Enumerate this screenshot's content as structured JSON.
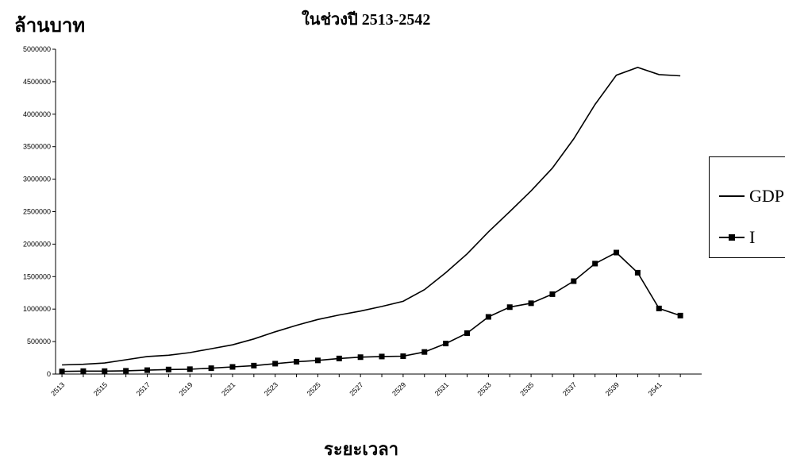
{
  "chart_data": {
    "type": "line",
    "title": "ในช่วงปี 2513-2542",
    "ylabel": "ล้านบาท",
    "xlabel": "ระยะเวลา",
    "ylim": [
      0,
      5000000
    ],
    "yticks": [
      0,
      500000,
      1000000,
      1500000,
      2000000,
      2500000,
      3000000,
      3500000,
      4000000,
      4500000,
      5000000
    ],
    "ytick_labels": [
      "0",
      "500000",
      "1000000",
      "1500000",
      "2000000",
      "2500000",
      "3000000",
      "3500000",
      "4000000",
      "4500000",
      "5000000"
    ],
    "x": [
      2513,
      2514,
      2515,
      2516,
      2517,
      2518,
      2519,
      2520,
      2521,
      2522,
      2523,
      2524,
      2525,
      2526,
      2527,
      2528,
      2529,
      2530,
      2531,
      2532,
      2533,
      2534,
      2535,
      2536,
      2537,
      2538,
      2539,
      2540,
      2541,
      2542
    ],
    "xtick_labels": [
      "2513",
      "2515",
      "2517",
      "2519",
      "2521",
      "2523",
      "2525",
      "2527",
      "2529",
      "2531",
      "2533",
      "2535",
      "2537",
      "2539",
      "2541"
    ],
    "xtick_values": [
      2513,
      2515,
      2517,
      2519,
      2521,
      2523,
      2525,
      2527,
      2529,
      2531,
      2533,
      2535,
      2537,
      2539,
      2541
    ],
    "series": [
      {
        "name": "GDP",
        "marker": "none",
        "values": [
          140000,
          150000,
          170000,
          220000,
          270000,
          290000,
          330000,
          390000,
          450000,
          540000,
          650000,
          750000,
          840000,
          910000,
          970000,
          1040000,
          1120000,
          1300000,
          1560000,
          1850000,
          2190000,
          2500000,
          2820000,
          3170000,
          3620000,
          4150000,
          4600000,
          4720000,
          4610000,
          4590000
        ]
      },
      {
        "name": "I",
        "marker": "square",
        "values": [
          40000,
          45000,
          45000,
          50000,
          60000,
          70000,
          75000,
          90000,
          110000,
          130000,
          160000,
          190000,
          210000,
          240000,
          260000,
          270000,
          275000,
          340000,
          470000,
          630000,
          880000,
          1030000,
          1090000,
          1230000,
          1430000,
          1700000,
          1870000,
          1560000,
          1010000,
          900000
        ]
      }
    ],
    "grid": false,
    "legend_position": "right",
    "colors": {
      "line": "#000000",
      "marker": "#000000"
    }
  }
}
